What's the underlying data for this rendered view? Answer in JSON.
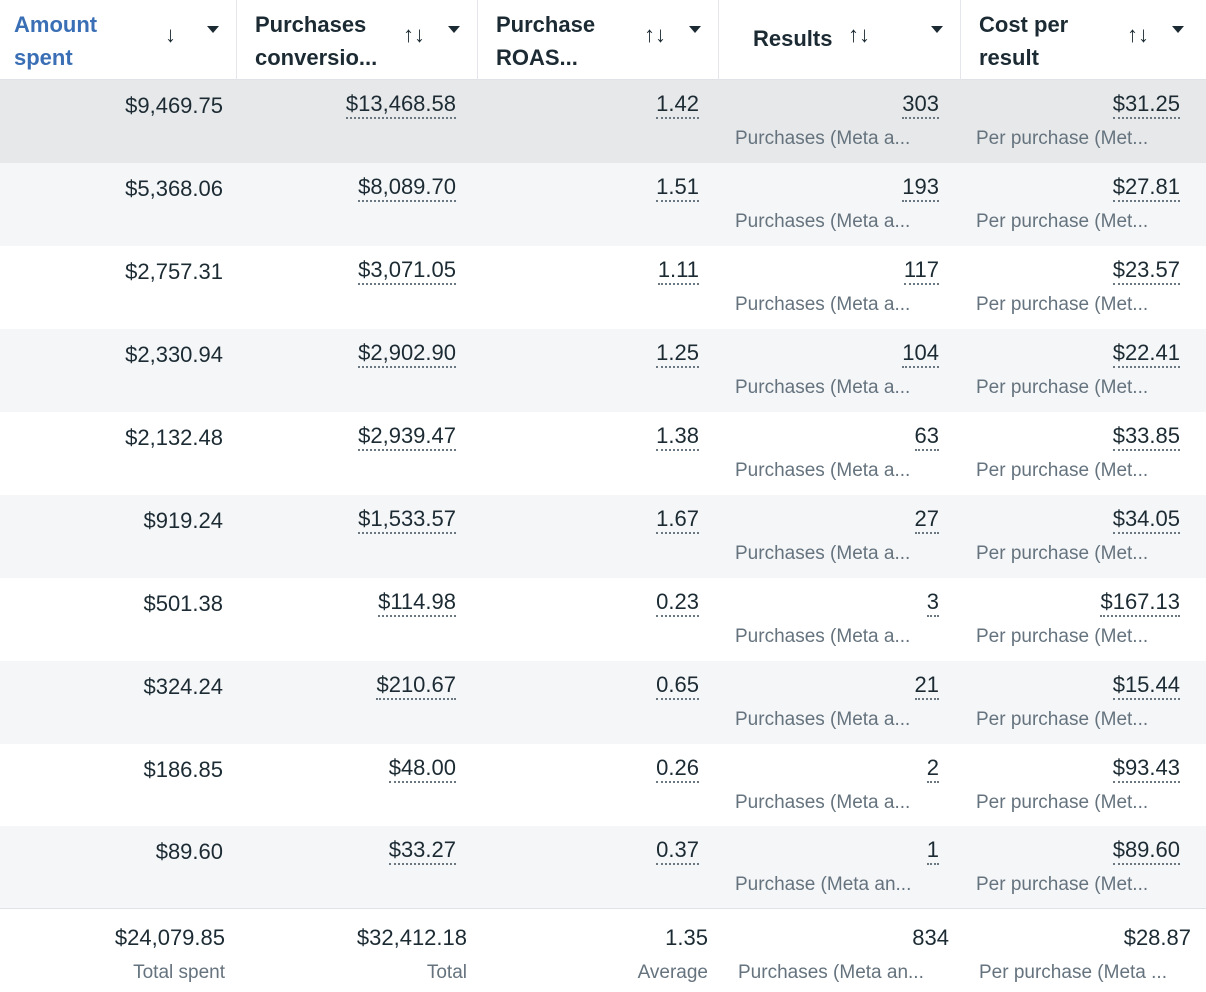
{
  "columns": [
    {
      "title": "Amount\nspent",
      "sort": "↓"
    },
    {
      "title": "Purchases\nconversio...",
      "sort": "↑↓"
    },
    {
      "title": "Purchase\nROAS...",
      "sort": "↑↓"
    },
    {
      "title": "Results",
      "sort": "↑↓"
    },
    {
      "title": "Cost per\nresult",
      "sort": "↑↓"
    }
  ],
  "rows": [
    {
      "spent": "$9,469.75",
      "conv": "$13,468.58",
      "roas": "1.42",
      "results": "303",
      "results_sub": "Purchases (Meta a...",
      "cpr": "$31.25",
      "cpr_sub": "Per purchase (Met..."
    },
    {
      "spent": "$5,368.06",
      "conv": "$8,089.70",
      "roas": "1.51",
      "results": "193",
      "results_sub": "Purchases (Meta a...",
      "cpr": "$27.81",
      "cpr_sub": "Per purchase (Met..."
    },
    {
      "spent": "$2,757.31",
      "conv": "$3,071.05",
      "roas": "1.11",
      "results": "117",
      "results_sub": "Purchases (Meta a...",
      "cpr": "$23.57",
      "cpr_sub": "Per purchase (Met..."
    },
    {
      "spent": "$2,330.94",
      "conv": "$2,902.90",
      "roas": "1.25",
      "results": "104",
      "results_sub": "Purchases (Meta a...",
      "cpr": "$22.41",
      "cpr_sub": "Per purchase (Met..."
    },
    {
      "spent": "$2,132.48",
      "conv": "$2,939.47",
      "roas": "1.38",
      "results": "63",
      "results_sub": "Purchases (Meta a...",
      "cpr": "$33.85",
      "cpr_sub": "Per purchase (Met..."
    },
    {
      "spent": "$919.24",
      "conv": "$1,533.57",
      "roas": "1.67",
      "results": "27",
      "results_sub": "Purchases (Meta a...",
      "cpr": "$34.05",
      "cpr_sub": "Per purchase (Met..."
    },
    {
      "spent": "$501.38",
      "conv": "$114.98",
      "roas": "0.23",
      "results": "3",
      "results_sub": "Purchases (Meta a...",
      "cpr": "$167.13",
      "cpr_sub": "Per purchase (Met..."
    },
    {
      "spent": "$324.24",
      "conv": "$210.67",
      "roas": "0.65",
      "results": "21",
      "results_sub": "Purchases (Meta a...",
      "cpr": "$15.44",
      "cpr_sub": "Per purchase (Met..."
    },
    {
      "spent": "$186.85",
      "conv": "$48.00",
      "roas": "0.26",
      "results": "2",
      "results_sub": "Purchases (Meta a...",
      "cpr": "$93.43",
      "cpr_sub": "Per purchase (Met..."
    },
    {
      "spent": "$89.60",
      "conv": "$33.27",
      "roas": "0.37",
      "results": "1",
      "results_sub": "Purchase (Meta an...",
      "cpr": "$89.60",
      "cpr_sub": "Per purchase (Met..."
    }
  ],
  "totals": {
    "spent": "$24,079.85",
    "spent_sub": "Total spent",
    "conv": "$32,412.18",
    "conv_sub": "Total",
    "roas": "1.35",
    "roas_sub": "Average",
    "results": "834",
    "results_sub": "Purchases (Meta an...",
    "cpr": "$28.87",
    "cpr_sub": "Per purchase (Meta ..."
  },
  "colors": {
    "active_header": "#3a6fb5",
    "hover_row": "#e7e8ea",
    "stripe": "#f5f6f8"
  }
}
